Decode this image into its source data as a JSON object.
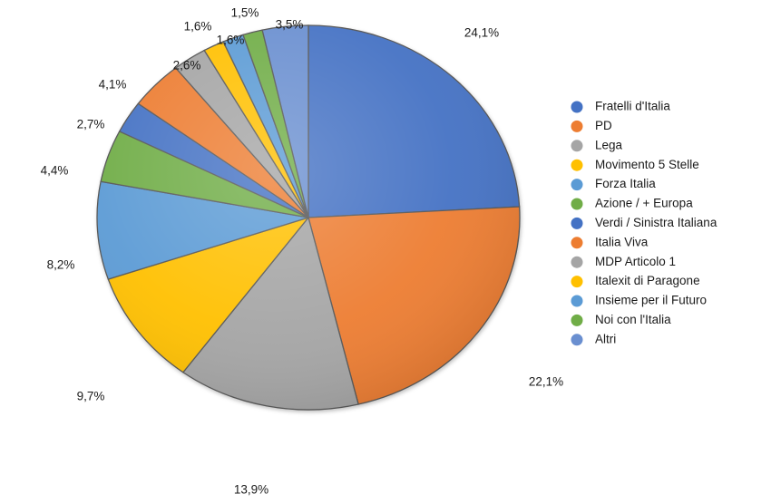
{
  "chart_data": {
    "type": "pie",
    "legend_position": "right",
    "series": [
      {
        "name": "Fratelli d'Italia",
        "value": 24.1,
        "label": "24,1%",
        "color": "#4472C4"
      },
      {
        "name": "PD",
        "value": 22.1,
        "label": "22,1%",
        "color": "#ED7D31"
      },
      {
        "name": "Lega",
        "value": 13.9,
        "label": "13,9%",
        "color": "#A5A5A5"
      },
      {
        "name": "Movimento 5 Stelle",
        "value": 9.7,
        "label": "9,7%",
        "color": "#FFC000"
      },
      {
        "name": "Forza Italia",
        "value": 8.2,
        "label": "8,2%",
        "color": "#5B9BD5"
      },
      {
        "name": "Azione / + Europa",
        "value": 4.4,
        "label": "4,4%",
        "color": "#70AD47"
      },
      {
        "name": "Verdi / Sinistra Italiana",
        "value": 2.7,
        "label": "2,7%",
        "color": "#4472C4"
      },
      {
        "name": "Italia Viva",
        "value": 4.1,
        "label": "4,1%",
        "color": "#ED7D31"
      },
      {
        "name": "MDP Articolo 1",
        "value": 2.6,
        "label": "2,6%",
        "color": "#A5A5A5"
      },
      {
        "name": "Italexit di Paragone",
        "value": 1.6,
        "label": "1,6%",
        "color": "#FFC000"
      },
      {
        "name": "Insieme per il Futuro",
        "value": 1.6,
        "label": "1,6%",
        "color": "#5B9BD5"
      },
      {
        "name": "Noi con l'Italia",
        "value": 1.5,
        "label": "1,5%",
        "color": "#70AD47"
      },
      {
        "name": "Altri",
        "value": 3.5,
        "label": "3,5%",
        "color": "#6A8FD0"
      }
    ]
  }
}
